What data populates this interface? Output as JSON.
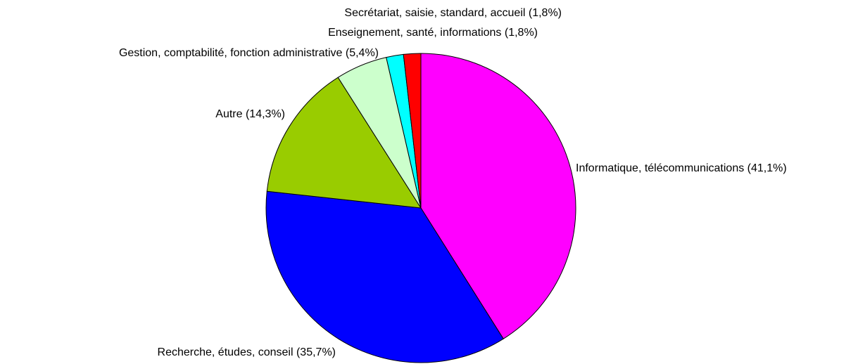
{
  "chart_data": {
    "type": "pie",
    "labels": [
      "Informatique, télécommunications (41,1%)",
      "Recherche, études, conseil (35,7%)",
      "Autre (14,3%)",
      "Gestion, comptabilité, fonction administrative (5,4%)",
      "Enseignement, santé, informations (1,8%)",
      "Secrétariat, saisie, standard, accueil (1,8%)"
    ],
    "values": [
      41.1,
      35.7,
      14.3,
      5.4,
      1.8,
      1.8
    ],
    "colors": [
      "#ff00ff",
      "#0000ff",
      "#99cc00",
      "#ccffcc",
      "#00ffff",
      "#ff0000"
    ]
  }
}
